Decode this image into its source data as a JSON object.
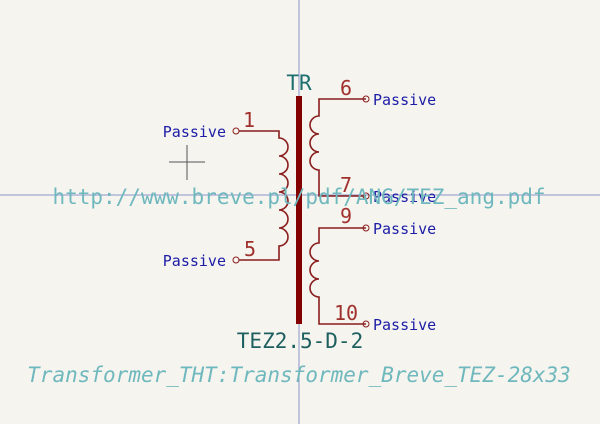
{
  "colors": {
    "background": "#f5f4ef",
    "crosshair": "#8a93c9",
    "body": "#840000",
    "pin_wire": "#8a1d1d",
    "pin_number": "#a0302c",
    "pin_type": "#1c1ca6",
    "reference": "#1d6f6f",
    "value": "#1d5f5f",
    "field_hidden": "#6fb8bd"
  },
  "symbol": {
    "reference": "TR",
    "value": "TEZ2.5-D-2",
    "footprint": "Transformer_THT:Transformer_Breve_TEZ-28x33",
    "datasheet": "http://www.breve.pl/pdf/ANG/TEZ_ang.pdf"
  },
  "pins": [
    {
      "number": "1",
      "type": "Passive",
      "side": "left"
    },
    {
      "number": "5",
      "type": "Passive",
      "side": "left"
    },
    {
      "number": "6",
      "type": "Passive",
      "side": "right"
    },
    {
      "number": "7",
      "type": "Passive",
      "side": "right"
    },
    {
      "number": "9",
      "type": "Passive",
      "side": "right"
    },
    {
      "number": "10",
      "type": "Passive",
      "side": "right"
    }
  ]
}
